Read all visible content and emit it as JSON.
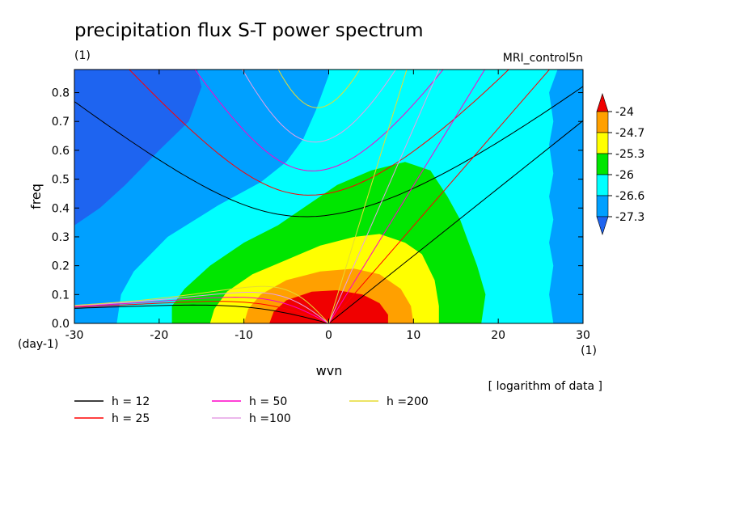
{
  "chart_data": {
    "type": "heatmap",
    "title": "precipitation flux S-T power spectrum",
    "subtitle": "(1)",
    "model_label": "MRI_control5n",
    "xlabel": "wvn",
    "ylabel": "freq",
    "x_unit_label": "(1)",
    "y_unit_label": "(day-1)",
    "note": "[ logarithm of data ]",
    "xlim": [
      -30,
      30
    ],
    "ylim": [
      0,
      0.88
    ],
    "x_ticks": [
      -30,
      -20,
      -10,
      0,
      10,
      20,
      30
    ],
    "y_ticks": [
      0.0,
      0.1,
      0.2,
      0.3,
      0.4,
      0.5,
      0.6,
      0.7,
      0.8
    ],
    "x_tick_labels": [
      "-30",
      "-20",
      "-10",
      "0",
      "10",
      "20",
      "30"
    ],
    "y_tick_labels": [
      "0.0",
      "0.1",
      "0.2",
      "0.3",
      "0.4",
      "0.5",
      "0.6",
      "0.7",
      "0.8"
    ],
    "colorbar": {
      "levels": [
        "-24",
        "-24.7",
        "-25.3",
        "-26",
        "-26.6",
        "-27.3"
      ],
      "colors": [
        "#1e64f0",
        "#00a0ff",
        "#00ffff",
        "#00e600",
        "#ffff00",
        "#ffa000",
        "#f00000"
      ]
    },
    "contour_regions": [
      {
        "level": "< -27.3",
        "color": "#1e64f0",
        "region": "upper left (k < -15, freq > 0.35)"
      },
      {
        "level": "-27.3 to -26.6",
        "color": "#00a0ff",
        "region": "background outer band, k < -25 and k > 27"
      },
      {
        "level": "-26.6 to -26",
        "color": "#00ffff",
        "region": "broad band around the central maximum"
      },
      {
        "level": "-26 to -25.3",
        "color": "#00e600",
        "region": "k -18 to 18, freq < 0.56"
      },
      {
        "level": "-25.3 to -24.7",
        "color": "#ffff00",
        "region": "k -14 to 13, freq < 0.31"
      },
      {
        "level": "-24.7 to -24",
        "color": "#ffa000",
        "region": "k -10 to 10, freq < 0.19"
      },
      {
        "level": "> -24",
        "color": "#f00000",
        "region": "k -7 to 7, freq < 0.11"
      }
    ],
    "dispersion_curves": [
      {
        "name": "h = 12",
        "color": "#000000"
      },
      {
        "name": "h = 25",
        "color": "#ff0000"
      },
      {
        "name": "h = 50",
        "color": "#ff00c8"
      },
      {
        "name": "h =100",
        "color": "#e6a0e6"
      },
      {
        "name": "h =200",
        "color": "#e6dc32"
      }
    ],
    "grid": false,
    "legend_placement": "bottom-left"
  }
}
